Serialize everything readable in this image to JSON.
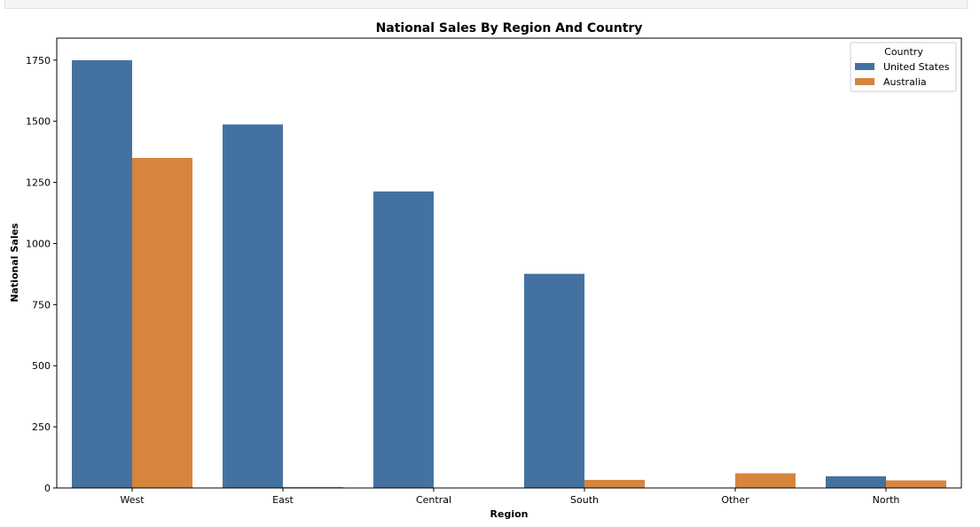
{
  "chart_data": {
    "type": "bar",
    "title": "National Sales By Region And Country",
    "xlabel": "Region",
    "ylabel": "National Sales",
    "categories": [
      "West",
      "East",
      "Central",
      "South",
      "Other",
      "North"
    ],
    "series": [
      {
        "name": "United States",
        "color": "#4472a0",
        "values": [
          1750,
          1487,
          1213,
          876,
          0,
          48
        ]
      },
      {
        "name": "Australia",
        "color": "#d6843e",
        "values": [
          1350,
          4,
          0,
          33,
          60,
          31
        ]
      }
    ],
    "ylim": [
      0,
      1840
    ],
    "yticks": [
      0,
      250,
      500,
      750,
      1000,
      1250,
      1500,
      1750
    ],
    "legend": {
      "title": "Country",
      "position": "top-right"
    },
    "grid": false
  }
}
